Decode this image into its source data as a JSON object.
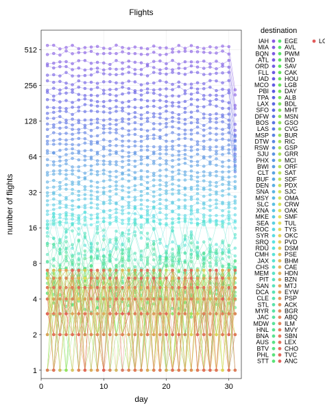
{
  "chart_data": {
    "type": "scatter",
    "title": "Flights",
    "xlabel": "day",
    "ylabel": "number of flights",
    "y_scale": "log2",
    "xlim": [
      0,
      32
    ],
    "ylim": [
      0.85,
      750
    ],
    "x_ticks": [
      0,
      10,
      20,
      30
    ],
    "y_ticks": [
      1,
      2,
      4,
      8,
      16,
      32,
      64,
      128,
      256,
      512
    ],
    "y_tick_labels": [
      "1",
      "2",
      "4",
      "8",
      "16",
      "32",
      "64",
      "128",
      "256",
      "512"
    ],
    "legend_title": "destination",
    "legend_placement": "right",
    "grid": true,
    "palette_hue_range": [
      "#ff6b6b",
      "#ffd27a",
      "#9ee39e",
      "#7ed6e6",
      "#8fa8f0",
      "#b98cf2"
    ],
    "series": [
      {
        "name": "IAH",
        "level": 540
      },
      {
        "name": "MIA",
        "level": 480
      },
      {
        "name": "BQN",
        "level": 400
      },
      {
        "name": "ATL",
        "level": 360
      },
      {
        "name": "ORD",
        "level": 320
      },
      {
        "name": "FLL",
        "level": 270
      },
      {
        "name": "IAD",
        "level": 240
      },
      {
        "name": "MCO",
        "level": 215
      },
      {
        "name": "PBI",
        "level": 190
      },
      {
        "name": "TPA",
        "level": 170
      },
      {
        "name": "LAX",
        "level": 150
      },
      {
        "name": "SFO",
        "level": 135
      },
      {
        "name": "DFW",
        "level": 122
      },
      {
        "name": "BOS",
        "level": 110
      },
      {
        "name": "LAS",
        "level": 98
      },
      {
        "name": "MSP",
        "level": 88
      },
      {
        "name": "DTW",
        "level": 80
      },
      {
        "name": "RSW",
        "level": 72
      },
      {
        "name": "SJU",
        "level": 66
      },
      {
        "name": "PHX",
        "level": 60
      },
      {
        "name": "BWI",
        "level": 54
      },
      {
        "name": "CLT",
        "level": 48
      },
      {
        "name": "BUF",
        "level": 44
      },
      {
        "name": "DEN",
        "level": 40
      },
      {
        "name": "SNA",
        "level": 36
      },
      {
        "name": "MSY",
        "level": 33
      },
      {
        "name": "SLC",
        "level": 30
      },
      {
        "name": "XNA",
        "level": 27
      },
      {
        "name": "MKE",
        "level": 25
      },
      {
        "name": "SEA",
        "level": 23
      },
      {
        "name": "ROC",
        "level": 21
      },
      {
        "name": "SYR",
        "level": 19
      },
      {
        "name": "SRQ",
        "level": 17.5
      },
      {
        "name": "RDU",
        "level": 16
      },
      {
        "name": "CMH",
        "level": 14.5
      },
      {
        "name": "JAX",
        "level": 13.5
      },
      {
        "name": "CHS",
        "level": 12.5
      },
      {
        "name": "MEM",
        "level": 11.5
      },
      {
        "name": "PIT",
        "level": 10.5
      },
      {
        "name": "SAN",
        "level": 10
      },
      {
        "name": "DCA",
        "level": 9.5
      },
      {
        "name": "CLE",
        "level": 9
      },
      {
        "name": "STL",
        "level": 8.5
      },
      {
        "name": "MYR",
        "level": 8
      },
      {
        "name": "JAC",
        "level": 7.5
      },
      {
        "name": "MDW",
        "level": 7
      },
      {
        "name": "HNL",
        "level": 6.5
      },
      {
        "name": "BNA",
        "level": 6
      },
      {
        "name": "AUS",
        "level": 5.5
      },
      {
        "name": "BTV",
        "level": 5
      },
      {
        "name": "PHL",
        "level": 4.5
      },
      {
        "name": "STT",
        "level": 4
      },
      {
        "name": "EGE",
        "level": 3.5
      },
      {
        "name": "AVL",
        "level": 3.2
      },
      {
        "name": "PWM",
        "level": 3
      },
      {
        "name": "IND",
        "level": 2.8
      },
      {
        "name": "SAV",
        "level": 2.6
      },
      {
        "name": "CAK",
        "level": 2.4
      },
      {
        "name": "HOU",
        "level": 2.2
      },
      {
        "name": "LGB",
        "level": 2
      },
      {
        "name": "DAY",
        "level": 1.9
      },
      {
        "name": "ALB",
        "level": 1.8
      },
      {
        "name": "BDL",
        "level": 1.7
      },
      {
        "name": "MHT",
        "level": 1.6
      },
      {
        "name": "MSN",
        "level": 1.55
      },
      {
        "name": "GSO",
        "level": 1.5
      },
      {
        "name": "CVG",
        "level": 1.45
      },
      {
        "name": "BUR",
        "level": 1.4
      },
      {
        "name": "RIC",
        "level": 1.35
      },
      {
        "name": "GSP",
        "level": 1.3
      },
      {
        "name": "GRR",
        "level": 1.25
      },
      {
        "name": "MCI",
        "level": 1.2
      },
      {
        "name": "ORF",
        "level": 1.18
      },
      {
        "name": "SAT",
        "level": 1.16
      },
      {
        "name": "SDF",
        "level": 1.14
      },
      {
        "name": "PDX",
        "level": 1.12
      },
      {
        "name": "SJC",
        "level": 1.1
      },
      {
        "name": "OMA",
        "level": 1.08
      },
      {
        "name": "CRW",
        "level": 1.06
      },
      {
        "name": "OAK",
        "level": 1.05
      },
      {
        "name": "SMF",
        "level": 1.04
      },
      {
        "name": "TUL",
        "level": 1.03
      },
      {
        "name": "TYS",
        "level": 1.02
      },
      {
        "name": "OKC",
        "level": 1.01
      },
      {
        "name": "PVD",
        "level": 1
      },
      {
        "name": "DSM",
        "level": 1
      },
      {
        "name": "PSE",
        "level": 1
      },
      {
        "name": "BHM",
        "level": 1
      },
      {
        "name": "CAE",
        "level": 1
      },
      {
        "name": "HDN",
        "level": 1
      },
      {
        "name": "BZN",
        "level": 1
      },
      {
        "name": "MTJ",
        "level": 1
      },
      {
        "name": "EYW",
        "level": 1
      },
      {
        "name": "PSP",
        "level": 1
      },
      {
        "name": "ACK",
        "level": 1
      },
      {
        "name": "BGR",
        "level": 1
      },
      {
        "name": "ABQ",
        "level": 1
      },
      {
        "name": "ILM",
        "level": 1
      },
      {
        "name": "MVY",
        "level": 1
      },
      {
        "name": "SBN",
        "level": 1
      },
      {
        "name": "LEX",
        "level": 1
      },
      {
        "name": "CHO",
        "level": 1
      },
      {
        "name": "TVC",
        "level": 1
      },
      {
        "name": "ANC",
        "level": 1
      },
      {
        "name": "LGA",
        "level": 1
      }
    ]
  }
}
